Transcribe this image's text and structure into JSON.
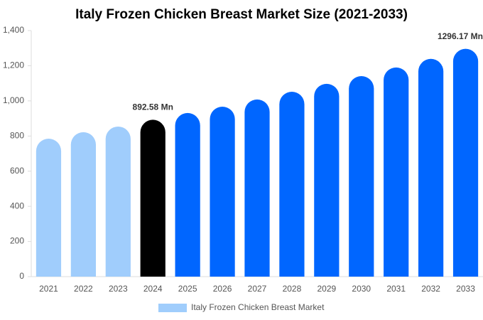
{
  "chart_data": {
    "type": "bar",
    "title": "Italy Frozen Chicken Breast Market Size (2021-2033)",
    "categories": [
      "2021",
      "2022",
      "2023",
      "2024",
      "2025",
      "2026",
      "2027",
      "2028",
      "2029",
      "2030",
      "2031",
      "2032",
      "2033"
    ],
    "series": [
      {
        "name": "Italy Frozen Chicken Breast Market",
        "color": "#a0cdfc",
        "values": [
          785,
          822,
          854,
          892.58,
          931,
          967,
          1008,
          1052,
          1097,
          1141,
          1190,
          1239,
          1296.17
        ],
        "value_labels": [
          null,
          null,
          null,
          "892.58 Mn",
          null,
          null,
          null,
          null,
          null,
          null,
          null,
          null,
          "1296.17 Mn"
        ],
        "colors": [
          "#a0cdfc",
          "#a0cdfc",
          "#a0cdfc",
          "#000000",
          "#0066ff",
          "#0066ff",
          "#0066ff",
          "#0066ff",
          "#0066ff",
          "#0066ff",
          "#0066ff",
          "#0066ff",
          "#0066ff"
        ]
      }
    ],
    "ylim": [
      0,
      1400
    ],
    "yticks": [
      0,
      200,
      400,
      600,
      800,
      {
        "value": 1000,
        "label": "1,000"
      },
      {
        "value": 1200,
        "label": "1,200"
      },
      {
        "value": 1400,
        "label": "1,400"
      }
    ],
    "grid": false
  }
}
